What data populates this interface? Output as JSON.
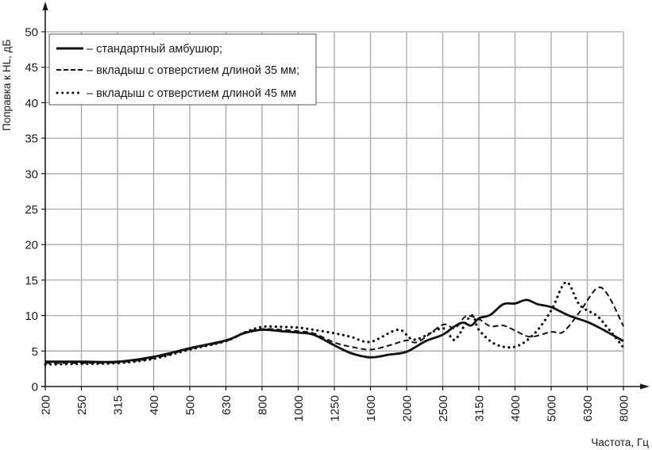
{
  "chart_data": {
    "type": "line",
    "title": "",
    "xlabel": "Частота, Гц",
    "ylabel": "Поправка к HL, дБ",
    "x_scale": "log-categorical",
    "x_ticks": [
      "200",
      "250",
      "315",
      "400",
      "500",
      "630",
      "800",
      "1000",
      "1250",
      "1600",
      "2000",
      "2500",
      "3150",
      "4000",
      "5000",
      "6300",
      "8000"
    ],
    "y_ticks": [
      "0",
      "5",
      "10",
      "15",
      "20",
      "25",
      "30",
      "35",
      "40",
      "45",
      "50"
    ],
    "ylim": [
      0,
      50
    ],
    "xlim": [
      200,
      8000
    ],
    "grid": true,
    "legend_position": "top-left",
    "series": [
      {
        "name": "– стандартный амбушюр;",
        "style": "solid",
        "x": [
          200,
          250,
          315,
          400,
          500,
          630,
          710,
          800,
          900,
          1000,
          1100,
          1250,
          1400,
          1600,
          1800,
          2000,
          2250,
          2500,
          2700,
          2850,
          3000,
          3150,
          3400,
          3700,
          4000,
          4300,
          4600,
          5000,
          5600,
          6300,
          7000,
          8000
        ],
        "y": [
          3.5,
          3.5,
          3.5,
          4.2,
          5.4,
          6.5,
          7.5,
          8.0,
          7.8,
          7.6,
          7.3,
          5.8,
          4.7,
          4.1,
          4.5,
          4.9,
          6.4,
          7.3,
          8.5,
          9.0,
          8.6,
          9.6,
          10.1,
          11.6,
          11.7,
          12.2,
          11.6,
          11.2,
          10.0,
          9.1,
          8.0,
          6.4
        ]
      },
      {
        "name": "– вкладыш с отверстием длиной 35 мм;",
        "style": "dashed",
        "x": [
          200,
          250,
          315,
          400,
          500,
          630,
          710,
          800,
          900,
          1000,
          1100,
          1250,
          1400,
          1600,
          1800,
          2000,
          2150,
          2500,
          2700,
          2900,
          3150,
          3400,
          3700,
          4000,
          4400,
          5000,
          5400,
          6000,
          6700,
          7200,
          8000
        ],
        "y": [
          3.3,
          3.3,
          3.4,
          4.0,
          5.3,
          6.4,
          7.6,
          8.1,
          8.0,
          7.8,
          7.5,
          6.2,
          5.6,
          5.2,
          5.8,
          6.5,
          6.3,
          8.7,
          8.2,
          9.9,
          9.5,
          8.5,
          8.6,
          7.9,
          7.0,
          7.7,
          7.7,
          10.5,
          13.8,
          13.0,
          8.5
        ]
      },
      {
        "name": "– вкладыш с отверстием длиной 45 мм",
        "style": "dotted",
        "x": [
          200,
          250,
          315,
          400,
          500,
          630,
          710,
          800,
          900,
          1000,
          1100,
          1250,
          1400,
          1600,
          1900,
          2100,
          2500,
          2700,
          3000,
          3150,
          3500,
          4000,
          4500,
          5000,
          5500,
          6000,
          6700,
          7200,
          8000
        ],
        "y": [
          3.1,
          3.2,
          3.3,
          3.9,
          5.2,
          6.4,
          7.6,
          8.4,
          8.4,
          8.3,
          8.0,
          7.5,
          7.0,
          6.3,
          8.0,
          6.6,
          8.2,
          6.6,
          10.0,
          8.0,
          6.0,
          5.6,
          7.4,
          10.7,
          14.7,
          11.5,
          10.0,
          8.3,
          5.5
        ]
      }
    ]
  }
}
